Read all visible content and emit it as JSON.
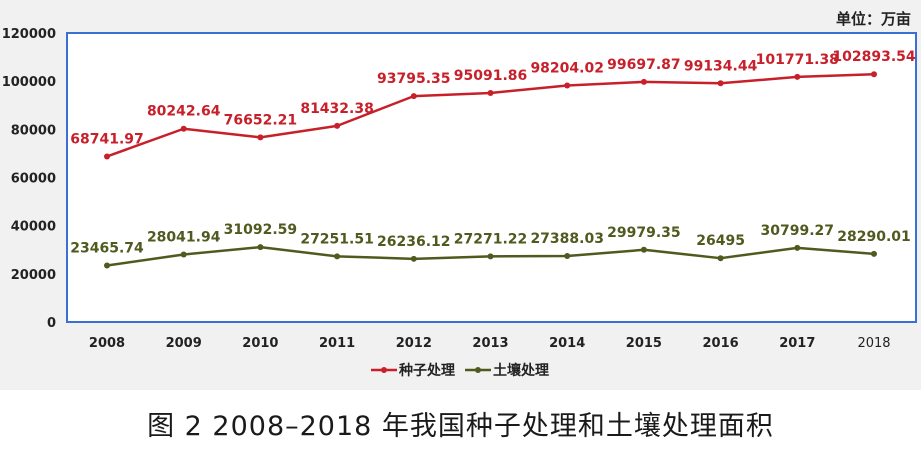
{
  "caption": "图 2 2008–2018 年我国种子处理和土壤处理面积",
  "chart_data": {
    "type": "line",
    "unit_label": "单位：万亩",
    "x": [
      "2008",
      "2009",
      "2010",
      "2011",
      "2012",
      "2013",
      "2014",
      "2015",
      "2016",
      "2017",
      "2018"
    ],
    "y_ticks": [
      "0",
      "20000",
      "40000",
      "60000",
      "80000",
      "100000",
      "120000"
    ],
    "ylim": [
      0,
      120000
    ],
    "grid": false,
    "legend_position": "bottom",
    "series": [
      {
        "name": "种子处理",
        "color": "#c8202a",
        "values": [
          68741.97,
          80242.64,
          76652.21,
          81432.38,
          93795.35,
          95091.86,
          98204.02,
          99697.87,
          99134.44,
          101771.38,
          102893.54
        ],
        "labels": [
          "68741.97",
          "80242.64",
          "76652.21",
          "81432.38",
          "93795.35",
          "95091.86",
          "98204.02",
          "99697.87",
          "99134.44",
          "101771.38",
          "102893.54"
        ]
      },
      {
        "name": "土壤处理",
        "color": "#4e5a1e",
        "values": [
          23465.74,
          28041.94,
          31092.59,
          27251.51,
          26236.12,
          27271.22,
          27388.03,
          29979.35,
          26495,
          30799.27,
          28290.01
        ],
        "labels": [
          "23465.74",
          "28041.94",
          "31092.59",
          "27251.51",
          "26236.12",
          "27271.22",
          "27388.03",
          "29979.35",
          "26495",
          "30799.27",
          "28290.01"
        ]
      }
    ]
  }
}
